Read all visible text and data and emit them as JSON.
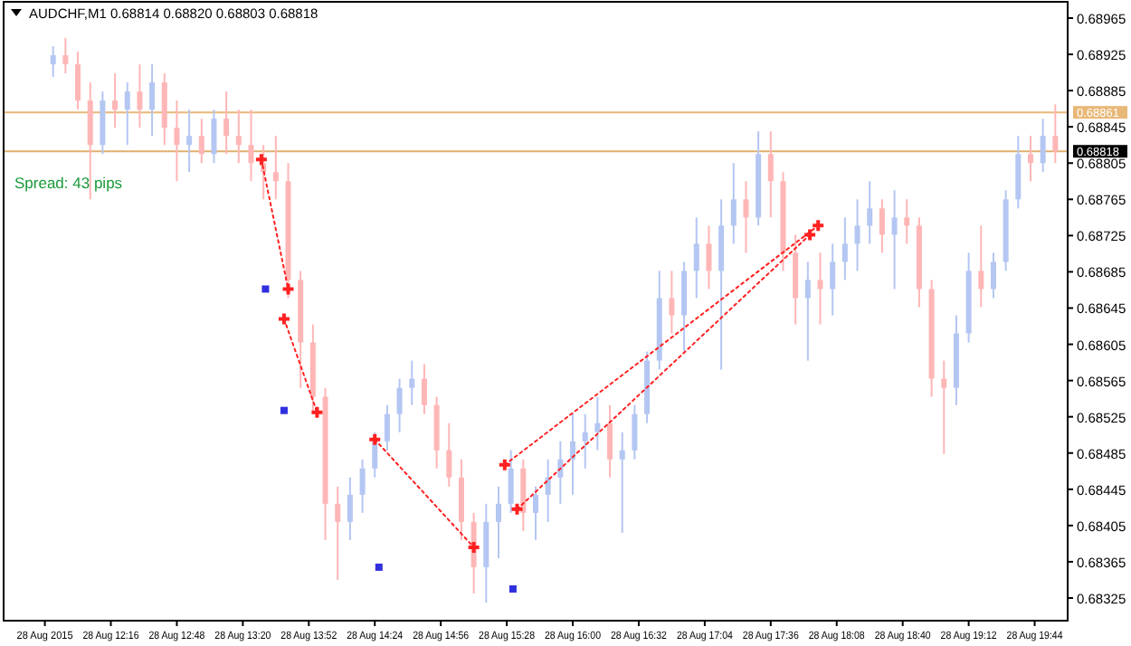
{
  "chart_data": {
    "type": "candlestick",
    "title": "AUDCHF,M1  0.68814 0.68820 0.68803 0.68818",
    "annotations": [
      "Spread: 43 pips"
    ],
    "x": [
      "2015-08-28T11:48",
      "2015-08-28T11:54",
      "2015-08-28T12:00",
      "2015-08-28T12:06",
      "2015-08-28T12:12",
      "2015-08-28T12:18",
      "2015-08-28T12:24",
      "2015-08-28T12:30",
      "2015-08-28T12:36",
      "2015-08-28T12:42",
      "2015-08-28T12:48",
      "2015-08-28T12:54",
      "2015-08-28T13:00",
      "2015-08-28T13:06",
      "2015-08-28T13:12",
      "2015-08-28T13:18",
      "2015-08-28T13:24",
      "2015-08-28T13:30",
      "2015-08-28T13:36",
      "2015-08-28T13:42",
      "2015-08-28T13:48",
      "2015-08-28T13:54",
      "2015-08-28T14:00",
      "2015-08-28T14:06",
      "2015-08-28T14:12",
      "2015-08-28T14:18",
      "2015-08-28T14:24",
      "2015-08-28T14:30",
      "2015-08-28T14:36",
      "2015-08-28T14:42",
      "2015-08-28T14:48",
      "2015-08-28T14:54",
      "2015-08-28T15:00",
      "2015-08-28T15:06",
      "2015-08-28T15:12",
      "2015-08-28T15:18",
      "2015-08-28T15:24",
      "2015-08-28T15:30",
      "2015-08-28T15:36",
      "2015-08-28T15:42",
      "2015-08-28T15:48",
      "2015-08-28T15:54",
      "2015-08-28T16:00",
      "2015-08-28T16:06",
      "2015-08-28T16:12",
      "2015-08-28T16:18",
      "2015-08-28T16:24",
      "2015-08-28T16:30",
      "2015-08-28T16:36",
      "2015-08-28T16:42",
      "2015-08-28T16:48",
      "2015-08-28T16:54",
      "2015-08-28T17:00",
      "2015-08-28T17:06",
      "2015-08-28T17:12",
      "2015-08-28T17:18",
      "2015-08-28T17:24",
      "2015-08-28T17:30",
      "2015-08-28T17:36",
      "2015-08-28T17:42",
      "2015-08-28T17:48",
      "2015-08-28T17:54",
      "2015-08-28T18:00",
      "2015-08-28T18:06",
      "2015-08-28T18:12",
      "2015-08-28T18:18",
      "2015-08-28T18:24",
      "2015-08-28T18:30",
      "2015-08-28T18:36",
      "2015-08-28T18:42",
      "2015-08-28T18:48",
      "2015-08-28T18:54",
      "2015-08-28T19:00",
      "2015-08-28T19:06",
      "2015-08-28T19:12",
      "2015-08-28T19:18",
      "2015-08-28T19:24",
      "2015-08-28T19:30",
      "2015-08-28T19:36",
      "2015-08-28T19:42",
      "2015-08-28T19:48",
      "2015-08-28T19:54"
    ],
    "ohlc": [
      [
        0.68914,
        0.68934,
        0.689,
        0.68924
      ],
      [
        0.68924,
        0.68943,
        0.68904,
        0.68914
      ],
      [
        0.68914,
        0.68928,
        0.68864,
        0.68874
      ],
      [
        0.68874,
        0.68894,
        0.68765,
        0.68825
      ],
      [
        0.68825,
        0.68884,
        0.68815,
        0.68874
      ],
      [
        0.68874,
        0.68904,
        0.68844,
        0.68864
      ],
      [
        0.68864,
        0.68894,
        0.68825,
        0.68884
      ],
      [
        0.68884,
        0.68914,
        0.68844,
        0.68864
      ],
      [
        0.68864,
        0.68914,
        0.68835,
        0.68894
      ],
      [
        0.68894,
        0.68904,
        0.68825,
        0.68844
      ],
      [
        0.68844,
        0.68874,
        0.68785,
        0.68825
      ],
      [
        0.68825,
        0.68864,
        0.68795,
        0.68835
      ],
      [
        0.68835,
        0.68854,
        0.68805,
        0.68815
      ],
      [
        0.68815,
        0.68864,
        0.68805,
        0.68854
      ],
      [
        0.68854,
        0.68884,
        0.68815,
        0.68835
      ],
      [
        0.68835,
        0.68864,
        0.68805,
        0.68825
      ],
      [
        0.68825,
        0.68864,
        0.68785,
        0.68805
      ],
      [
        0.68805,
        0.68825,
        0.68765,
        0.68795
      ],
      [
        0.68795,
        0.68835,
        0.68765,
        0.68785
      ],
      [
        0.68785,
        0.68805,
        0.68656,
        0.68676
      ],
      [
        0.68676,
        0.68686,
        0.68557,
        0.68607
      ],
      [
        0.68607,
        0.68627,
        0.68528,
        0.68547
      ],
      [
        0.68547,
        0.68557,
        0.68389,
        0.68429
      ],
      [
        0.68429,
        0.68448,
        0.68345,
        0.68409
      ],
      [
        0.68409,
        0.68458,
        0.68389,
        0.68439
      ],
      [
        0.68439,
        0.68478,
        0.68419,
        0.68468
      ],
      [
        0.68468,
        0.68508,
        0.68458,
        0.68498
      ],
      [
        0.68498,
        0.68538,
        0.68488,
        0.68528
      ],
      [
        0.68528,
        0.68567,
        0.68508,
        0.68557
      ],
      [
        0.68557,
        0.68587,
        0.68538,
        0.68567
      ],
      [
        0.68567,
        0.68583,
        0.68528,
        0.68538
      ],
      [
        0.68538,
        0.68547,
        0.68468,
        0.68488
      ],
      [
        0.68488,
        0.68518,
        0.68448,
        0.68458
      ],
      [
        0.68458,
        0.68478,
        0.68389,
        0.68409
      ],
      [
        0.68409,
        0.68419,
        0.6833,
        0.68359
      ],
      [
        0.68359,
        0.68429,
        0.6832,
        0.68409
      ],
      [
        0.68409,
        0.68448,
        0.68369,
        0.68429
      ],
      [
        0.68429,
        0.68488,
        0.68419,
        0.68468
      ],
      [
        0.68468,
        0.68478,
        0.68399,
        0.68419
      ],
      [
        0.68419,
        0.68448,
        0.68389,
        0.68439
      ],
      [
        0.68439,
        0.68478,
        0.68409,
        0.68458
      ],
      [
        0.68458,
        0.68498,
        0.68429,
        0.68478
      ],
      [
        0.68478,
        0.68528,
        0.68439,
        0.68498
      ],
      [
        0.68498,
        0.68528,
        0.68468,
        0.68508
      ],
      [
        0.68508,
        0.68547,
        0.68488,
        0.68518
      ],
      [
        0.68518,
        0.68538,
        0.68458,
        0.68478
      ],
      [
        0.68478,
        0.68508,
        0.68397,
        0.68488
      ],
      [
        0.68488,
        0.68538,
        0.68478,
        0.68528
      ],
      [
        0.68528,
        0.68597,
        0.68518,
        0.68587
      ],
      [
        0.68587,
        0.68686,
        0.68577,
        0.68656
      ],
      [
        0.68656,
        0.68686,
        0.68617,
        0.68637
      ],
      [
        0.68637,
        0.68696,
        0.68597,
        0.68686
      ],
      [
        0.68686,
        0.68745,
        0.68656,
        0.68716
      ],
      [
        0.68716,
        0.68736,
        0.68666,
        0.68686
      ],
      [
        0.68686,
        0.68765,
        0.68577,
        0.68736
      ],
      [
        0.68736,
        0.68805,
        0.68716,
        0.68765
      ],
      [
        0.68765,
        0.68785,
        0.68706,
        0.68745
      ],
      [
        0.68745,
        0.6884,
        0.68736,
        0.68815
      ],
      [
        0.68815,
        0.6884,
        0.68745,
        0.68785
      ],
      [
        0.68785,
        0.68795,
        0.68686,
        0.68706
      ],
      [
        0.68706,
        0.68726,
        0.68627,
        0.68656
      ],
      [
        0.68656,
        0.68696,
        0.68587,
        0.68676
      ],
      [
        0.68676,
        0.68706,
        0.68627,
        0.68666
      ],
      [
        0.68666,
        0.68716,
        0.68637,
        0.68696
      ],
      [
        0.68696,
        0.68745,
        0.68676,
        0.68716
      ],
      [
        0.68716,
        0.68765,
        0.68686,
        0.68736
      ],
      [
        0.68736,
        0.68785,
        0.68716,
        0.68755
      ],
      [
        0.68755,
        0.68765,
        0.68706,
        0.68726
      ],
      [
        0.68726,
        0.68775,
        0.68666,
        0.68745
      ],
      [
        0.68745,
        0.68765,
        0.68716,
        0.68736
      ],
      [
        0.68736,
        0.68745,
        0.68646,
        0.68666
      ],
      [
        0.68666,
        0.68676,
        0.68547,
        0.68567
      ],
      [
        0.68567,
        0.68587,
        0.68484,
        0.68557
      ],
      [
        0.68557,
        0.68637,
        0.68538,
        0.68617
      ],
      [
        0.68617,
        0.68706,
        0.68607,
        0.68686
      ],
      [
        0.68686,
        0.68736,
        0.68646,
        0.68666
      ],
      [
        0.68666,
        0.68706,
        0.68656,
        0.68696
      ],
      [
        0.68696,
        0.68775,
        0.68686,
        0.68765
      ],
      [
        0.68765,
        0.68835,
        0.68755,
        0.68815
      ],
      [
        0.68815,
        0.68835,
        0.68785,
        0.68805
      ],
      [
        0.68805,
        0.68854,
        0.68795,
        0.68835
      ],
      [
        0.68835,
        0.6887,
        0.68805,
        0.68818
      ]
    ],
    "series": [
      {
        "type": "line",
        "color": "#ff2020",
        "line_style": "dotted",
        "marker": "cross",
        "x": [
          "2015-08-28T13:29",
          "2015-08-28T13:42"
        ],
        "values": [
          0.68809,
          0.68666
        ]
      },
      {
        "type": "line",
        "color": "#ff2020",
        "line_style": "dotted",
        "marker": "cross",
        "x": [
          "2015-08-28T13:40",
          "2015-08-28T13:56"
        ],
        "values": [
          0.68633,
          0.6853
        ]
      },
      {
        "type": "line",
        "color": "#ff2020",
        "line_style": "dotted",
        "marker": "cross",
        "x": [
          "2015-08-28T14:24",
          "2015-08-28T15:12"
        ],
        "values": [
          0.685,
          0.68381
        ]
      },
      {
        "type": "line",
        "color": "#ff2020",
        "line_style": "dotted",
        "marker": "cross",
        "x": [
          "2015-08-28T15:27",
          "2015-08-28T17:59"
        ],
        "values": [
          0.68472,
          0.68736
        ]
      },
      {
        "type": "line",
        "color": "#ff2020",
        "line_style": "dotted",
        "marker": "cross",
        "x": [
          "2015-08-28T15:33",
          "2015-08-28T17:55"
        ],
        "values": [
          0.68423,
          0.68726
        ]
      },
      {
        "type": "scatter",
        "color": "#3030e0",
        "marker": "square",
        "x": [
          "2015-08-28T13:31",
          "2015-08-28T13:40",
          "2015-08-28T14:26",
          "2015-08-28T15:31"
        ],
        "values": [
          0.68666,
          0.68532,
          0.68359,
          0.68335
        ]
      }
    ],
    "ref_lines": [
      {
        "axis": "y",
        "value": 0.68861,
        "label": "0.68861",
        "color": "#e8b878"
      },
      {
        "axis": "y",
        "value": 0.68818,
        "label": "0.68818",
        "color": "#e0b070"
      }
    ],
    "xlim": [
      "2015-08-28T11:24",
      "2015-08-28T20:00"
    ],
    "ylim": [
      0.683,
      0.68983
    ],
    "xticks": [
      {
        "value": "2015-08-28T11:44",
        "label": "28 Aug 2015"
      },
      {
        "value": "2015-08-28T12:16",
        "label": "28 Aug 12:16"
      },
      {
        "value": "2015-08-28T12:48",
        "label": "28 Aug 12:48"
      },
      {
        "value": "2015-08-28T13:20",
        "label": "28 Aug 13:20"
      },
      {
        "value": "2015-08-28T13:52",
        "label": "28 Aug 13:52"
      },
      {
        "value": "2015-08-28T14:24",
        "label": "28 Aug 14:24"
      },
      {
        "value": "2015-08-28T14:56",
        "label": "28 Aug 14:56"
      },
      {
        "value": "2015-08-28T15:28",
        "label": "28 Aug 15:28"
      },
      {
        "value": "2015-08-28T16:00",
        "label": "28 Aug 16:00"
      },
      {
        "value": "2015-08-28T16:32",
        "label": "28 Aug 16:32"
      },
      {
        "value": "2015-08-28T17:04",
        "label": "28 Aug 17:04"
      },
      {
        "value": "2015-08-28T17:36",
        "label": "28 Aug 17:36"
      },
      {
        "value": "2015-08-28T18:08",
        "label": "28 Aug 18:08"
      },
      {
        "value": "2015-08-28T18:40",
        "label": "28 Aug 18:40"
      },
      {
        "value": "2015-08-28T19:12",
        "label": "28 Aug 19:12"
      },
      {
        "value": "2015-08-28T19:44",
        "label": "28 Aug 19:44"
      }
    ],
    "yticks": [
      {
        "value": 0.68965,
        "label": "0.68965"
      },
      {
        "value": 0.68925,
        "label": "0.68925"
      },
      {
        "value": 0.68885,
        "label": "0.68885"
      },
      {
        "value": 0.68845,
        "label": "0.68845"
      },
      {
        "value": 0.68805,
        "label": "0.68805"
      },
      {
        "value": 0.68765,
        "label": "0.68765"
      },
      {
        "value": 0.68725,
        "label": "0.68725"
      },
      {
        "value": 0.68685,
        "label": "0.68685"
      },
      {
        "value": 0.68645,
        "label": "0.68645"
      },
      {
        "value": 0.68605,
        "label": "0.68605"
      },
      {
        "value": 0.68565,
        "label": "0.68565"
      },
      {
        "value": 0.68525,
        "label": "0.68525"
      },
      {
        "value": 0.68485,
        "label": "0.68485"
      },
      {
        "value": 0.68445,
        "label": "0.68445"
      },
      {
        "value": 0.68405,
        "label": "0.68405"
      },
      {
        "value": 0.68365,
        "label": "0.68365"
      },
      {
        "value": 0.68325,
        "label": "0.68325"
      }
    ],
    "grid": false
  }
}
